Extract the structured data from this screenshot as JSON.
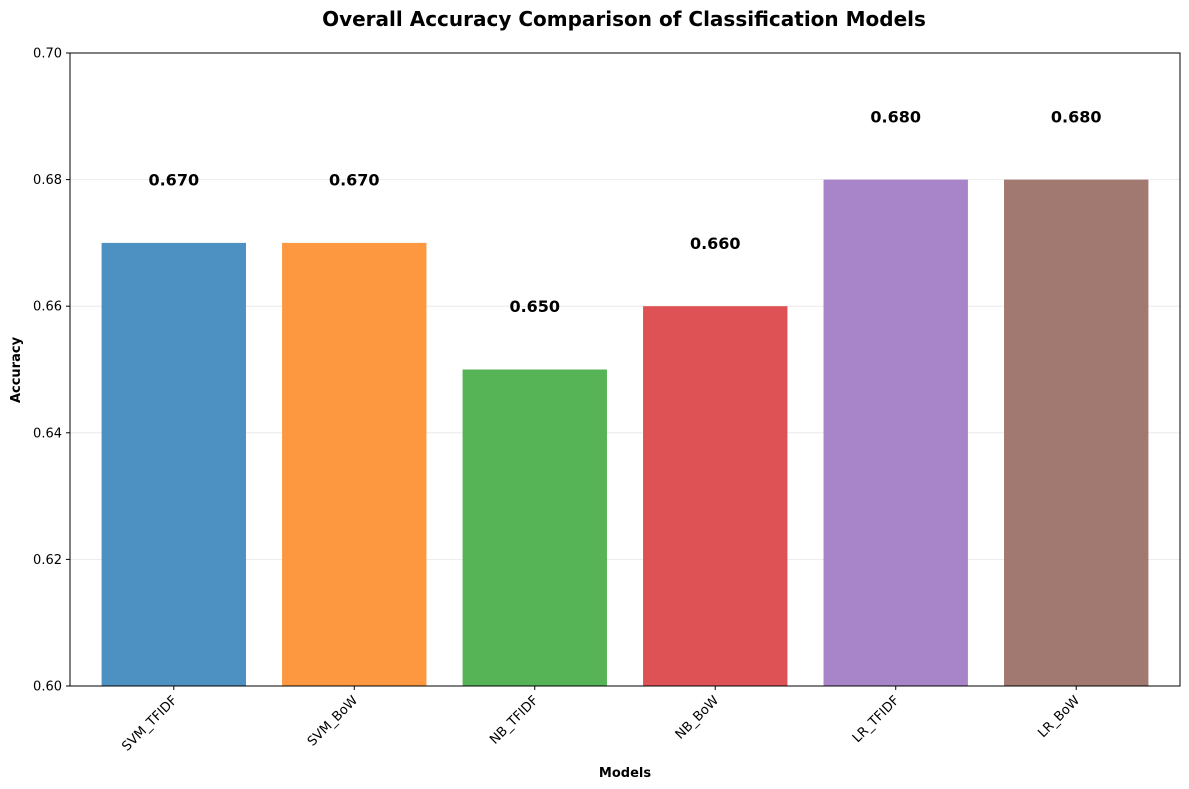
{
  "chart_data": {
    "type": "bar",
    "title": "Overall Accuracy Comparison of Classification Models",
    "xlabel": "Models",
    "ylabel": "Accuracy",
    "categories": [
      "SVM_TFIDF",
      "SVM_BoW",
      "NB_TFIDF",
      "NB_BoW",
      "LR_TFIDF",
      "LR_BoW"
    ],
    "values": [
      0.67,
      0.67,
      0.65,
      0.66,
      0.68,
      0.68
    ],
    "data_labels": [
      "0.670",
      "0.670",
      "0.650",
      "0.660",
      "0.680",
      "0.680"
    ],
    "colors": [
      "#4c91c1",
      "#fe9840",
      "#56b356",
      "#de5255",
      "#a885c9",
      "#a27970"
    ],
    "ylim": [
      0.6,
      0.7
    ],
    "yticks": [
      0.6,
      0.62,
      0.64,
      0.66,
      0.68,
      0.7
    ],
    "ytick_labels": [
      "0.60",
      "0.62",
      "0.64",
      "0.66",
      "0.68",
      "0.70"
    ],
    "grid": true,
    "grid_axis": "y"
  }
}
